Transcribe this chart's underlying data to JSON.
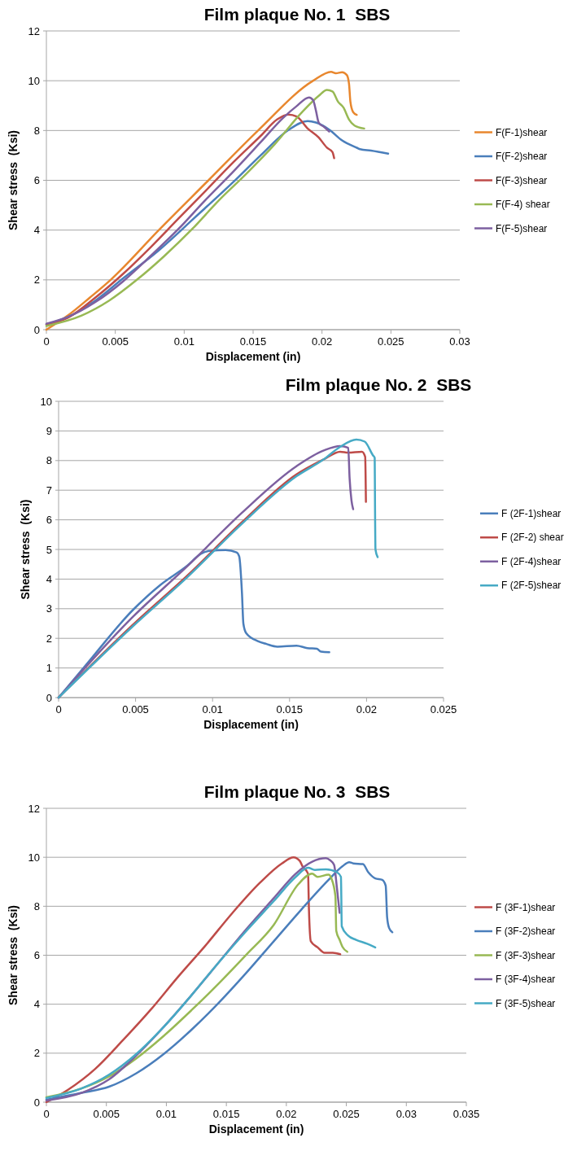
{
  "chart_data": [
    {
      "type": "line",
      "title": "Film plaque No. 1  SBS",
      "xlabel": "Displacement (in)",
      "ylabel": "Shear stress  (Ksi)",
      "xlim": [
        0,
        0.03
      ],
      "xticks": [
        0,
        0.005,
        0.01,
        0.015,
        0.02,
        0.025,
        0.03
      ],
      "ylim": [
        0,
        12
      ],
      "yticks": [
        0,
        2,
        4,
        6,
        8,
        10,
        12
      ],
      "grid": "y",
      "legend": "right",
      "series": [
        {
          "name": "F(F-1)shear",
          "color": "#e8872e",
          "x": [
            0,
            0.00156,
            0.00316,
            0.00466,
            0.00816,
            0.01176,
            0.01536,
            0.01936,
            0.02066,
            0.021,
            0.02146,
            0.0218,
            0.02196,
            0.02206,
            0.02226,
            0.02252
          ],
          "values": [
            0,
            0.57,
            1.29,
            2,
            4,
            6,
            8,
            10,
            10.36,
            10.3,
            10.34,
            10.23,
            9.88,
            9.16,
            8.74,
            8.63
          ]
        },
        {
          "name": "F(F-2)shear",
          "color": "#4a7ebb",
          "x": [
            0,
            0.00156,
            0.00356,
            0.00556,
            0.00816,
            0.01076,
            0.01356,
            0.01556,
            0.01756,
            0.01896,
            0.01956,
            0.02056,
            0.02146,
            0.02256,
            0.02276,
            0.02356,
            0.0248
          ],
          "values": [
            0.21,
            0.51,
            1.17,
            2.06,
            3.19,
            4.5,
            5.93,
            7.01,
            8.02,
            8.38,
            8.32,
            8.02,
            7.6,
            7.3,
            7.25,
            7.19,
            7.07
          ]
        },
        {
          "name": "F(F-3)shear",
          "color": "#be4b48",
          "x": [
            0,
            0.00156,
            0.00356,
            0.00556,
            0.00756,
            0.00956,
            0.01156,
            0.01356,
            0.01556,
            0.01676,
            0.01756,
            0.01816,
            0.01896,
            0.01976,
            0.02036,
            0.02076,
            0.02088
          ],
          "values": [
            0.21,
            0.48,
            1.29,
            2.24,
            3.31,
            4.45,
            5.58,
            6.72,
            7.79,
            8.45,
            8.64,
            8.56,
            8.08,
            7.72,
            7.31,
            7.13,
            6.89
          ]
        },
        {
          "name": "F(F-4) shear",
          "color": "#98b954",
          "x": [
            0,
            0.00256,
            0.00456,
            0.00656,
            0.00856,
            0.01056,
            0.01256,
            0.01456,
            0.01656,
            0.01856,
            0.01976,
            0.02036,
            0.02076,
            0.02116,
            0.02156,
            0.02196,
            0.02236,
            0.02306
          ],
          "values": [
            0.15,
            0.57,
            1.17,
            2,
            2.96,
            4.03,
            5.22,
            6.29,
            7.44,
            8.74,
            9.39,
            9.63,
            9.57,
            9.16,
            8.92,
            8.44,
            8.2,
            8.08
          ]
        },
        {
          "name": "F(F-5)shear",
          "color": "#7d60a0",
          "x": [
            0,
            0.00156,
            0.00356,
            0.00556,
            0.00756,
            0.00956,
            0.01156,
            0.01356,
            0.01556,
            0.01716,
            0.01816,
            0.01906,
            0.01936,
            0.01956,
            0.01976,
            0.02016,
            0.02052
          ],
          "values": [
            0.24,
            0.51,
            1.11,
            1.94,
            2.96,
            4.03,
            5.22,
            6.35,
            7.54,
            8.5,
            8.98,
            9.33,
            9.21,
            8.8,
            8.32,
            8.14,
            7.96
          ]
        }
      ]
    },
    {
      "type": "line",
      "title": "Film plaque No. 2  SBS",
      "xlabel": "Displacement (in)",
      "ylabel": "Shear stress  (Ksi)",
      "xlim": [
        0,
        0.025
      ],
      "xticks": [
        0,
        0.005,
        0.01,
        0.015,
        0.02,
        0.025
      ],
      "ylim": [
        0,
        10
      ],
      "yticks": [
        0,
        1,
        2,
        3,
        4,
        5,
        6,
        7,
        8,
        9,
        10
      ],
      "grid": "y",
      "legend": "right",
      "series": [
        {
          "name": "F (2F-1)shear",
          "color": "#4a7ebb",
          "x": [
            0,
            0.00165,
            0.00483,
            0.0066,
            0.00837,
            0.00926,
            0.00979,
            0.01085,
            0.01156,
            0.01173,
            0.01191,
            0.012,
            0.01218,
            0.01297,
            0.0135,
            0.01421,
            0.01545,
            0.01616,
            0.01678,
            0.01704,
            0.01758
          ],
          "values": [
            0,
            1.02,
            2.96,
            3.8,
            4.46,
            4.86,
            4.95,
            4.98,
            4.9,
            4.76,
            3.52,
            2.5,
            2.18,
            1.9,
            1.81,
            1.72,
            1.75,
            1.67,
            1.65,
            1.55,
            1.53
          ]
        },
        {
          "name": "F (2F-2) shear",
          "color": "#be4b48",
          "x": [
            0,
            0.00483,
            0.00837,
            0.01191,
            0.01545,
            0.01722,
            0.01828,
            0.01881,
            0.0197,
            0.01991,
            0.01996
          ],
          "values": [
            0,
            2.46,
            4.12,
            5.92,
            7.53,
            8.04,
            8.3,
            8.27,
            8.3,
            8.13,
            6.61
          ]
        },
        {
          "name": "F (2F-4)shear",
          "color": "#7d60a0",
          "x": [
            0,
            0.00483,
            0.00837,
            0.01191,
            0.01545,
            0.01722,
            0.01828,
            0.01881,
            0.0189,
            0.01902,
            0.01913
          ],
          "values": [
            0,
            2.73,
            4.44,
            6.24,
            7.81,
            8.34,
            8.49,
            8.43,
            7.4,
            6.66,
            6.36
          ]
        },
        {
          "name": "F (2F-5)shear",
          "color": "#46aac5",
          "x": [
            0,
            0.00483,
            0.00837,
            0.01191,
            0.01545,
            0.01722,
            0.01828,
            0.01934,
            0.01988,
            0.02041,
            0.02053,
            0.02055,
            0.02058,
            0.02072
          ],
          "values": [
            0,
            2.41,
            4.07,
            5.87,
            7.47,
            8.04,
            8.46,
            8.71,
            8.64,
            8.18,
            8.09,
            6.47,
            5,
            4.74
          ]
        }
      ]
    },
    {
      "type": "line",
      "title": "Film plaque No. 3  SBS",
      "xlabel": "Displacement (in)",
      "ylabel": "Shear stress  (Ksi)",
      "xlim": [
        0,
        0.035
      ],
      "xticks": [
        0,
        0.005,
        0.01,
        0.015,
        0.02,
        0.025,
        0.03,
        0.035
      ],
      "ylim": [
        0,
        12
      ],
      "yticks": [
        0,
        2,
        4,
        6,
        8,
        10,
        12
      ],
      "grid": "y",
      "legend": "right",
      "series": [
        {
          "name": "F (3F-1)shear",
          "color": "#be4b48",
          "x": [
            0,
            0.00178,
            0.00407,
            0.00636,
            0.00865,
            0.01094,
            0.01323,
            0.01551,
            0.0178,
            0.01963,
            0.0206,
            0.02112,
            0.02135,
            0.02181,
            0.02188,
            0.02204,
            0.02261,
            0.02318,
            0.02387,
            0.02449
          ],
          "values": [
            0,
            0.5,
            1.36,
            2.52,
            3.75,
            5.1,
            6.38,
            7.73,
            8.96,
            9.75,
            10,
            9.85,
            9.63,
            9.33,
            7.92,
            6.57,
            6.32,
            6.1,
            6.1,
            6.04
          ]
        },
        {
          "name": "F (3F-2)shear",
          "color": "#4a7ebb",
          "x": [
            0,
            0.00293,
            0.00522,
            0.0075,
            0.00979,
            0.01208,
            0.01437,
            0.01666,
            0.01895,
            0.02124,
            0.02352,
            0.02467,
            0.02524,
            0.02558,
            0.02638,
            0.02684,
            0.02741,
            0.02799,
            0.02828,
            0.0284,
            0.02856,
            0.02883
          ],
          "values": [
            0.1,
            0.38,
            0.63,
            1.18,
            1.97,
            2.95,
            4.06,
            5.28,
            6.57,
            7.86,
            9.08,
            9.63,
            9.8,
            9.75,
            9.72,
            9.38,
            9.14,
            9.08,
            8.84,
            7.55,
            7.12,
            6.94
          ]
        },
        {
          "name": "F (3F-3)shear",
          "color": "#98b954",
          "x": [
            0,
            0.00293,
            0.00522,
            0.0075,
            0.00979,
            0.01208,
            0.01437,
            0.01666,
            0.01895,
            0.021,
            0.02215,
            0.0226,
            0.02352,
            0.02375,
            0.02409,
            0.02416,
            0.02444,
            0.02467,
            0.02508
          ],
          "values": [
            0.2,
            0.56,
            1.05,
            1.79,
            2.71,
            3.75,
            4.85,
            6.02,
            7.24,
            8.9,
            9.33,
            9.2,
            9.29,
            9.14,
            8.41,
            7,
            6.63,
            6.35,
            6.14
          ]
        },
        {
          "name": "F (3F-4)shear",
          "color": "#7d60a0",
          "x": [
            0,
            0.00293,
            0.00522,
            0.0075,
            0.00979,
            0.01208,
            0.01437,
            0.01666,
            0.01895,
            0.02078,
            0.02215,
            0.0233,
            0.02364,
            0.02398,
            0.02421,
            0.02444
          ],
          "values": [
            0.07,
            0.38,
            0.93,
            1.91,
            3.08,
            4.36,
            5.71,
            7.06,
            8.33,
            9.33,
            9.82,
            9.96,
            9.88,
            9.69,
            8.77,
            7.73
          ]
        },
        {
          "name": "F (3F-5)shear",
          "color": "#46aac5",
          "x": [
            0,
            0.00293,
            0.00522,
            0.0075,
            0.00979,
            0.01208,
            0.01437,
            0.01666,
            0.01895,
            0.02078,
            0.02181,
            0.02238,
            0.0233,
            0.02421,
            0.02455,
            0.02462,
            0.02513,
            0.02581,
            0.02673,
            0.02741
          ],
          "values": [
            0.17,
            0.56,
            1.12,
            1.97,
            3.08,
            4.36,
            5.71,
            6.99,
            8.21,
            9.2,
            9.57,
            9.48,
            9.51,
            9.39,
            9.2,
            7.18,
            6.81,
            6.63,
            6.47,
            6.32
          ]
        }
      ]
    }
  ]
}
